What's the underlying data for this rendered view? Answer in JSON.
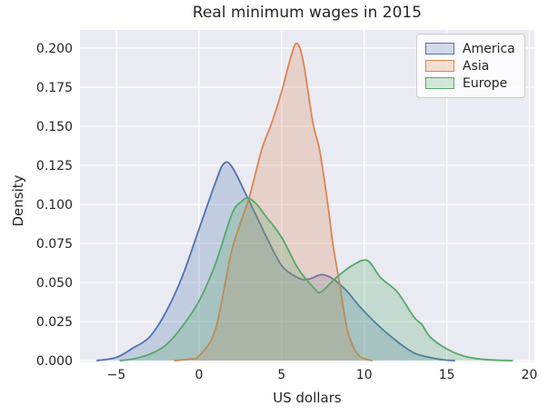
{
  "figure": {
    "title": "Real minimum wages in 2015",
    "xlabel": "US dollars",
    "ylabel": "Density"
  },
  "legend": {
    "position": "upper right",
    "items": [
      {
        "label": "America",
        "color": "#4C72B0"
      },
      {
        "label": "Asia",
        "color": "#DD8452"
      },
      {
        "label": "Europe",
        "color": "#55A868"
      }
    ]
  },
  "chart_data": {
    "type": "area",
    "subtype": "kde-density",
    "title": "Real minimum wages in 2015",
    "xlabel": "US dollars",
    "ylabel": "Density",
    "xlim": [
      -7.2,
      20.3
    ],
    "ylim": [
      0,
      0.2116
    ],
    "xticks": [
      -5,
      0,
      5,
      10,
      15,
      20
    ],
    "xtick_labels": [
      "−5",
      "0",
      "5",
      "10",
      "15",
      "20"
    ],
    "yticks": [
      0,
      0.025,
      0.05,
      0.075,
      0.1,
      0.125,
      0.15,
      0.175,
      0.2
    ],
    "ytick_labels": [
      "0.000",
      "0.025",
      "0.050",
      "0.075",
      "0.100",
      "0.125",
      "0.150",
      "0.175",
      "0.200"
    ],
    "grid": true,
    "background_color": "#EAEAF2",
    "grid_color": "#FFFFFF",
    "fill_alpha": 0.25,
    "legend_position": "upper right",
    "series": [
      {
        "name": "America",
        "color": "#4C72B0",
        "peak": {
          "x": 1.5,
          "density": 0.126
        },
        "points": [
          [
            -6.2,
            0
          ],
          [
            -5,
            0.002
          ],
          [
            -4,
            0.008
          ],
          [
            -3,
            0.015
          ],
          [
            -2,
            0.031
          ],
          [
            -1,
            0.054
          ],
          [
            0,
            0.084
          ],
          [
            1,
            0.114
          ],
          [
            1.5,
            0.126
          ],
          [
            2,
            0.124
          ],
          [
            3,
            0.103
          ],
          [
            4,
            0.081
          ],
          [
            5,
            0.061
          ],
          [
            6,
            0.053
          ],
          [
            6.6,
            0.052
          ],
          [
            7.4,
            0.055
          ],
          [
            8,
            0.053
          ],
          [
            8.5,
            0.049
          ],
          [
            9,
            0.044
          ],
          [
            9.7,
            0.035
          ],
          [
            10.8,
            0.023
          ],
          [
            11.9,
            0.013
          ],
          [
            13,
            0.005
          ],
          [
            14,
            0.002
          ],
          [
            14.8,
            0.0005
          ],
          [
            15.5,
            0
          ]
        ]
      },
      {
        "name": "Asia",
        "color": "#DD8452",
        "peak": {
          "x": 5.9,
          "density": 0.203
        },
        "points": [
          [
            -1.5,
            0
          ],
          [
            -0.5,
            0.001
          ],
          [
            0,
            0.003
          ],
          [
            1,
            0.02
          ],
          [
            2,
            0.071
          ],
          [
            3,
            0.103
          ],
          [
            3.8,
            0.135
          ],
          [
            4.4,
            0.152
          ],
          [
            5,
            0.172
          ],
          [
            5.5,
            0.192
          ],
          [
            5.9,
            0.203
          ],
          [
            6.3,
            0.192
          ],
          [
            6.9,
            0.152
          ],
          [
            7.3,
            0.135
          ],
          [
            7.8,
            0.1
          ],
          [
            8.1,
            0.075
          ],
          [
            8.5,
            0.05
          ],
          [
            8.8,
            0.03
          ],
          [
            9.1,
            0.015
          ],
          [
            9.7,
            0.003
          ],
          [
            10.5,
            0
          ]
        ]
      },
      {
        "name": "Europe",
        "color": "#55A868",
        "peak": {
          "x": 3.0,
          "density": 0.104
        },
        "secondary_peak": {
          "x": 10.2,
          "density": 0.064
        },
        "points": [
          [
            -4.8,
            0
          ],
          [
            -4,
            0.001
          ],
          [
            -3,
            0.004
          ],
          [
            -2,
            0.01
          ],
          [
            -1,
            0.022
          ],
          [
            0,
            0.038
          ],
          [
            1,
            0.062
          ],
          [
            2,
            0.094
          ],
          [
            2.6,
            0.102
          ],
          [
            3,
            0.104
          ],
          [
            3.5,
            0.1
          ],
          [
            4,
            0.093
          ],
          [
            5,
            0.079
          ],
          [
            6,
            0.059
          ],
          [
            7,
            0.046
          ],
          [
            7.4,
            0.044
          ],
          [
            8.3,
            0.053
          ],
          [
            9.3,
            0.061
          ],
          [
            10.2,
            0.064
          ],
          [
            11,
            0.053
          ],
          [
            12,
            0.044
          ],
          [
            13,
            0.028
          ],
          [
            13.5,
            0.023
          ],
          [
            14,
            0.015
          ],
          [
            15,
            0.0075
          ],
          [
            16,
            0.003
          ],
          [
            17,
            0.001
          ],
          [
            18,
            0.0003
          ],
          [
            19,
            0
          ]
        ]
      }
    ]
  }
}
